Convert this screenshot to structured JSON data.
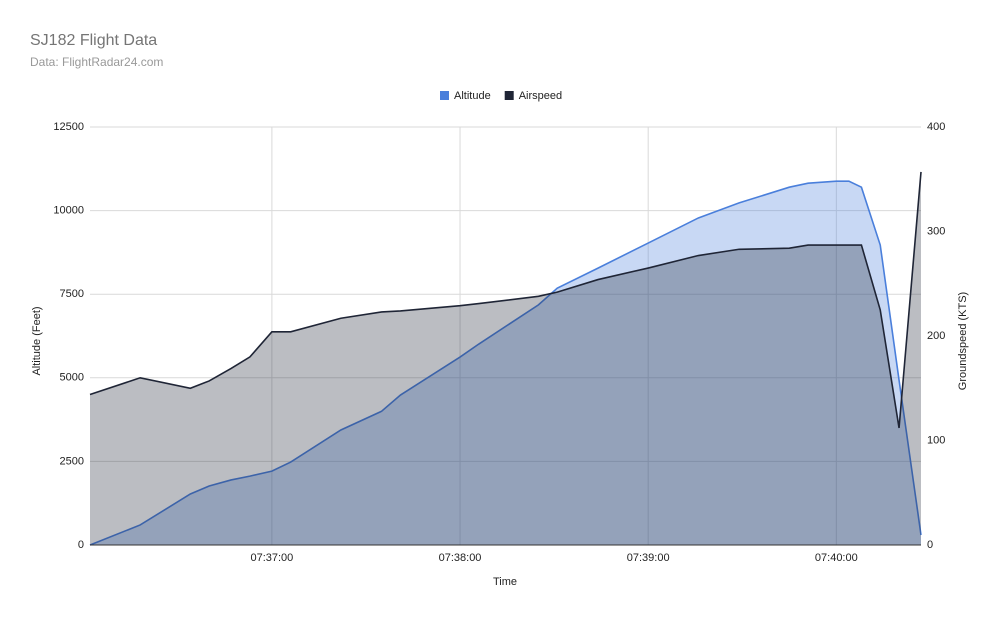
{
  "chart_data": {
    "type": "area",
    "title": "SJ182 Flight Data",
    "subtitle": "Data: FlightRadar24.com",
    "x_label": "Time",
    "y_label": "Altitude (Feet)",
    "y2_label": "Groundspeed (KTS)",
    "x": [
      "07:36:02",
      "07:36:18",
      "07:36:34",
      "07:36:40",
      "07:36:47",
      "07:36:53",
      "07:37:00",
      "07:37:06",
      "07:37:22",
      "07:37:35",
      "07:37:41",
      "07:38:00",
      "07:38:06",
      "07:38:25",
      "07:38:31",
      "07:38:44",
      "07:39:00",
      "07:39:16",
      "07:39:29",
      "07:39:45",
      "07:39:51",
      "07:40:00",
      "07:40:04",
      "07:40:08",
      "07:40:14",
      "07:40:20",
      "07:40:27"
    ],
    "xlim": [
      "07:36:02",
      "07:40:27"
    ],
    "xticks": [
      "07:37:00",
      "07:38:00",
      "07:39:00",
      "07:40:00"
    ],
    "ylim": [
      0,
      12500
    ],
    "yticks": [
      0,
      2500,
      5000,
      7500,
      10000,
      12500
    ],
    "y2lim": [
      0,
      400
    ],
    "y2ticks": [
      0,
      100,
      200,
      300,
      400
    ],
    "grid": true,
    "legend": "top",
    "series": [
      {
        "name": "Altitude",
        "color": "#4a7fdb",
        "axis": "y",
        "values": [
          0,
          600,
          1525,
          1765,
          1945,
          2060,
          2210,
          2480,
          3440,
          4000,
          4485,
          5620,
          6010,
          7180,
          7680,
          8280,
          9030,
          9780,
          10230,
          10700,
          10820,
          10880,
          10880,
          10700,
          8970,
          4930,
          300
        ]
      },
      {
        "name": "Airspeed",
        "color": "#1f2536",
        "axis": "y2",
        "values": [
          144,
          160,
          150,
          157,
          169,
          180,
          204,
          204,
          217,
          223,
          224,
          229,
          231,
          238,
          242,
          254,
          265,
          277,
          283,
          284,
          287,
          287,
          287,
          287,
          225,
          112,
          357
        ]
      }
    ]
  }
}
